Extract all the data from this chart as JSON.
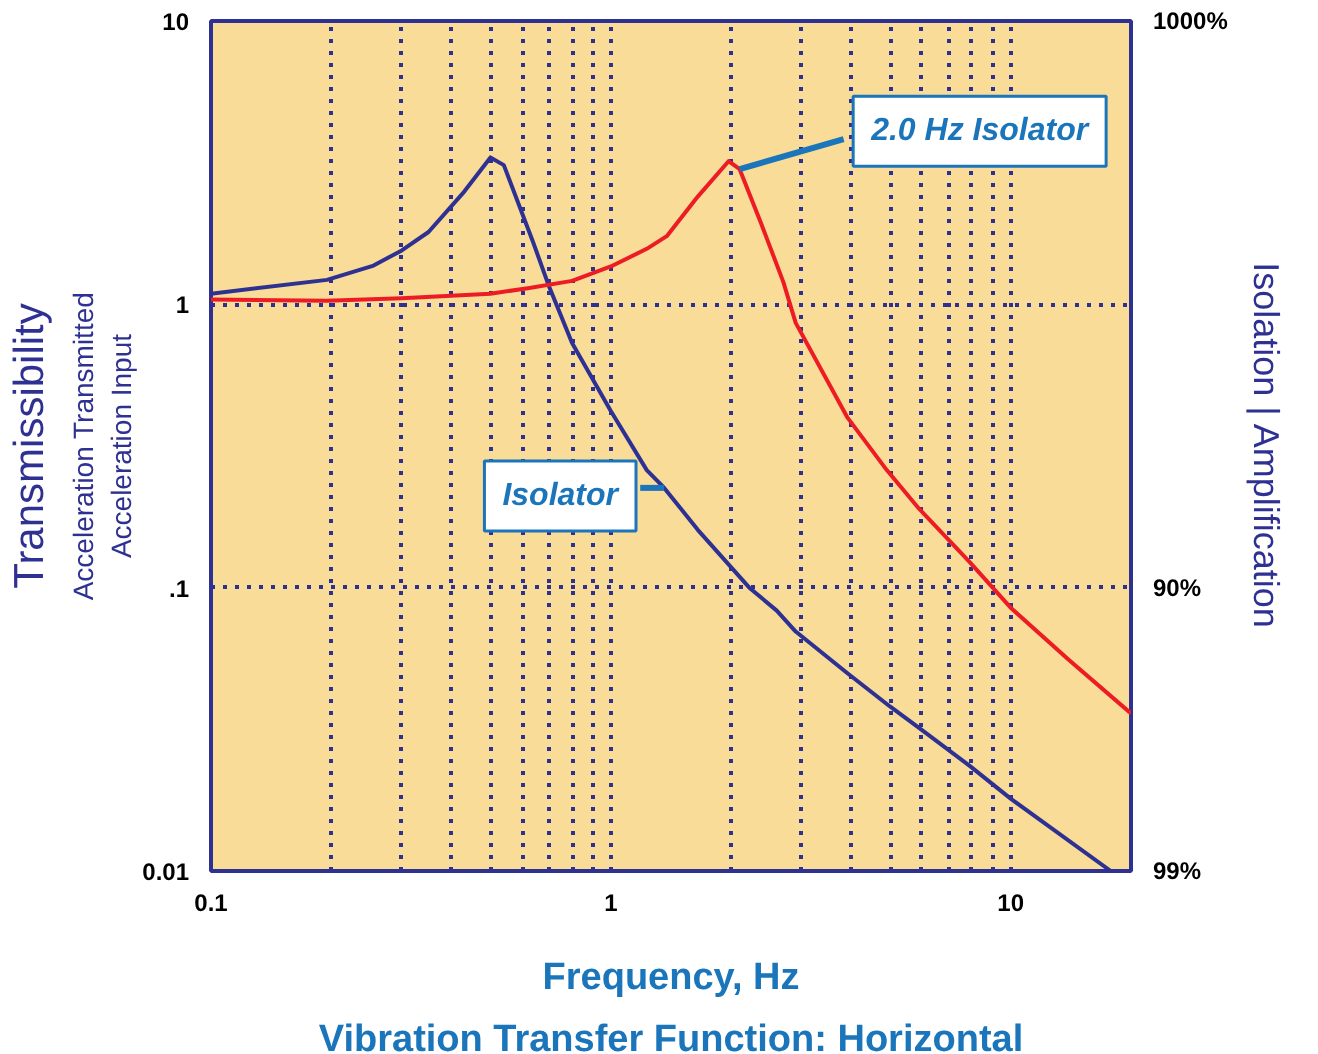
{
  "chart_data": {
    "type": "line",
    "title": "Vibration Transfer Function: Horizontal",
    "xlabel": "Frequency, Hz",
    "ylabel": "Transmissibility",
    "y2label": "Isolation | Amplification",
    "annotations": [
      "Acceleration Transmitted",
      "Acceleration Input",
      "1000%",
      "90%",
      "99%"
    ],
    "log": "xy",
    "grid": true,
    "xlim": [
      0.1,
      20
    ],
    "ylim": [
      0.01,
      10
    ],
    "xticks": [
      0.1,
      {
        "value": 0.2,
        "label": null
      },
      {
        "value": 0.3,
        "label": null
      },
      {
        "value": 0.4,
        "label": null
      },
      {
        "value": 0.5,
        "label": null
      },
      {
        "value": 0.6,
        "label": null
      },
      {
        "value": 0.7,
        "label": null
      },
      {
        "value": 0.8,
        "label": null
      },
      {
        "value": 0.9,
        "label": null
      },
      1,
      {
        "value": 2,
        "label": null
      },
      {
        "value": 3,
        "label": null
      },
      {
        "value": 4,
        "label": null
      },
      {
        "value": 5,
        "label": null
      },
      {
        "value": 6,
        "label": null
      },
      {
        "value": 7,
        "label": null
      },
      {
        "value": 8,
        "label": null
      },
      {
        "value": 9,
        "label": null
      },
      10
    ],
    "yticks": [
      0.01,
      {
        "value": 0.1,
        "label": ".1"
      },
      1,
      10
    ],
    "series": [
      {
        "name": "Isolator",
        "color": "#2e3192",
        "x": [
          0.1,
          0.195,
          0.255,
          0.3,
          0.35,
          0.43,
          0.5,
          0.54,
          0.64,
          0.7,
          0.8,
          1.0,
          1.23,
          1.36,
          1.65,
          2.22,
          2.6,
          2.9,
          3.9,
          5.0,
          5.9,
          7.9,
          10,
          17.8
        ],
        "values": [
          1.09,
          1.22,
          1.37,
          1.55,
          1.8,
          2.5,
          3.3,
          3.1,
          1.65,
          1.16,
          0.73,
          0.42,
          0.26,
          0.225,
          0.16,
          0.1,
          0.083,
          0.07,
          0.05,
          0.038,
          0.032,
          0.0235,
          0.018,
          0.01
        ]
      },
      {
        "name": "2.0 Hz Isolator",
        "color": "#ed1c24",
        "x": [
          0.1,
          0.195,
          0.3,
          0.5,
          0.62,
          0.8,
          1.0,
          1.23,
          1.38,
          1.65,
          1.97,
          2.1,
          2.37,
          2.7,
          2.9,
          3.9,
          4.9,
          5.9,
          7.9,
          10,
          13.9,
          20
        ],
        "values": [
          1.04,
          1.03,
          1.05,
          1.09,
          1.14,
          1.21,
          1.36,
          1.57,
          1.74,
          2.4,
          3.2,
          3.0,
          1.95,
          1.2,
          0.86,
          0.4,
          0.26,
          0.19,
          0.123,
          0.085,
          0.056,
          0.036
        ]
      }
    ]
  }
}
